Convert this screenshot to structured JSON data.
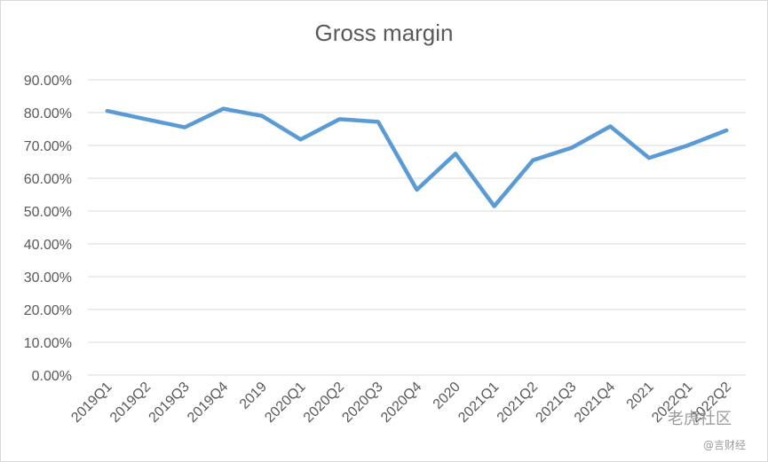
{
  "chart_data": {
    "type": "line",
    "title": "Gross margin",
    "categories": [
      "2019Q1",
      "2019Q2",
      "2019Q3",
      "2019Q4",
      "2019",
      "2020Q1",
      "2020Q2",
      "2020Q3",
      "2020Q4",
      "2020",
      "2021Q1",
      "2021Q2",
      "2021Q3",
      "2021Q4",
      "2021",
      "2022Q1",
      "2022Q2"
    ],
    "series": [
      {
        "values": [
          0.805,
          0.78,
          0.755,
          0.812,
          0.79,
          0.718,
          0.78,
          0.772,
          0.565,
          0.675,
          0.515,
          0.655,
          0.693,
          0.758,
          0.662,
          0.7,
          0.746
        ],
        "color": "#5b9bd5"
      }
    ],
    "ylim": [
      0,
      0.9
    ],
    "yticks": [
      "90.00%",
      "80.00%",
      "70.00%",
      "60.00%",
      "50.00%",
      "40.00%",
      "30.00%",
      "20.00%",
      "10.00%",
      "0.00%"
    ],
    "ytick_values": [
      0.9,
      0.8,
      0.7,
      0.6,
      0.5,
      0.4,
      0.3,
      0.2,
      0.1,
      0.0
    ],
    "grid": true,
    "legend": "none",
    "xlabel": "",
    "ylabel": ""
  },
  "watermark": {
    "main": "老虎社区",
    "sub": "@言财经"
  }
}
